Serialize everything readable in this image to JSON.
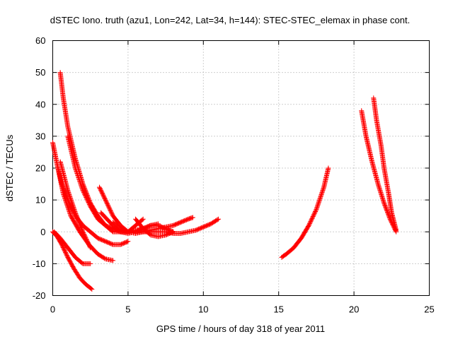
{
  "chart_data": {
    "type": "scatter",
    "title": "dSTEC Iono. truth (azu1, Lon=242, Lat=34, h=144): STEC-STEC_elemax in phase cont.",
    "xlabel": "GPS time / hours of day 318 of year 2011",
    "ylabel": "dSTEC  / TECUs",
    "xlim": [
      0,
      25
    ],
    "ylim": [
      -20,
      60
    ],
    "xticks": [
      0,
      5,
      10,
      15,
      20,
      25
    ],
    "yticks": [
      -20,
      -10,
      0,
      10,
      20,
      30,
      40,
      50,
      60
    ],
    "grid": true,
    "legend": "none",
    "marker": "plus",
    "color": "#ff0000",
    "series": [
      {
        "x": [
          0.0,
          0.3,
          0.6,
          1.0,
          1.4,
          1.8,
          2.2,
          2.6
        ],
        "y": [
          0,
          -1.5,
          -4,
          -8,
          -11.5,
          -14.5,
          -16.5,
          -18
        ]
      },
      {
        "x": [
          0.1,
          0.5,
          1.0,
          1.5,
          2.0,
          2.5
        ],
        "y": [
          0,
          -2,
          -5,
          -8,
          -10,
          -10
        ]
      },
      {
        "x": [
          0.0,
          0.3,
          0.6,
          1.0,
          1.5,
          2.0,
          2.5,
          3.0,
          3.5,
          4.0,
          4.5,
          5.0
        ],
        "y": [
          28,
          21,
          15,
          10,
          5,
          2,
          0,
          -2,
          -3,
          -4,
          -4,
          -3
        ]
      },
      {
        "x": [
          0.3,
          0.7,
          1.2,
          1.8,
          2.4,
          3.0,
          3.5,
          4.0
        ],
        "y": [
          21,
          12,
          5,
          0,
          -4,
          -7,
          -8.5,
          -9
        ]
      },
      {
        "x": [
          0.5,
          1.0,
          1.5,
          2.0,
          2.5
        ],
        "y": [
          22,
          13,
          6,
          0,
          -5
        ]
      },
      {
        "x": [
          0.5,
          0.7,
          1.0,
          1.5,
          2.0,
          2.5,
          3.0,
          3.5,
          4.0,
          4.5,
          5.0,
          5.5,
          6.0,
          6.5,
          7.0
        ],
        "y": [
          50,
          42,
          33,
          23,
          15,
          9,
          5,
          2,
          0,
          0,
          0,
          0.5,
          1,
          2,
          2.5
        ]
      },
      {
        "x": [
          1.0,
          1.5,
          2.0,
          2.5,
          3.0,
          3.5,
          4.0,
          4.5,
          5.0,
          5.5,
          6.0
        ],
        "y": [
          30,
          20,
          13,
          8,
          4,
          2,
          1,
          0,
          0,
          2,
          4
        ]
      },
      {
        "x": [
          3.1,
          3.5,
          4.0,
          4.5,
          5.0,
          5.5,
          6.0,
          6.5,
          7.0,
          7.5,
          8.0,
          8.5,
          9.0,
          9.3
        ],
        "y": [
          14,
          10,
          5,
          2,
          0,
          -0.5,
          0,
          0.5,
          1,
          1.5,
          2,
          3,
          4,
          4.5
        ]
      },
      {
        "x": [
          3.2,
          3.6,
          4.0,
          4.5,
          5.0,
          5.5,
          6.0,
          6.5,
          7.0,
          7.5,
          8.0,
          8.5,
          9.0,
          9.5,
          10.0,
          10.5,
          11.0
        ],
        "y": [
          6,
          4,
          2,
          0,
          -0.5,
          0,
          0,
          0,
          0,
          0,
          -0.5,
          -0.5,
          0,
          0.5,
          1.5,
          2.5,
          4
        ]
      },
      {
        "x": [
          4.0,
          4.5,
          5.0,
          5.5,
          6.0,
          6.5,
          7.0,
          7.5,
          8.0
        ],
        "y": [
          3,
          1,
          0,
          0,
          1,
          2,
          2,
          1,
          0
        ]
      },
      {
        "x": [
          5.5,
          6.0,
          6.5,
          7.0,
          7.5,
          8.0
        ],
        "y": [
          4,
          1,
          -1,
          -1.5,
          -1,
          0
        ]
      },
      {
        "x": [
          15.2,
          15.5,
          16.0,
          16.5,
          17.0,
          17.5,
          18.0,
          18.3
        ],
        "y": [
          -8,
          -7,
          -5,
          -2,
          2,
          7,
          14,
          20
        ]
      },
      {
        "x": [
          20.5,
          20.8,
          21.2,
          21.6,
          22.0,
          22.4,
          22.8
        ],
        "y": [
          38,
          30,
          22,
          15,
          9,
          4,
          0
        ]
      },
      {
        "x": [
          21.3,
          21.5,
          21.8,
          22.0,
          22.3,
          22.5,
          22.8
        ],
        "y": [
          42,
          35,
          27,
          20,
          12,
          6,
          0.5
        ]
      }
    ]
  }
}
